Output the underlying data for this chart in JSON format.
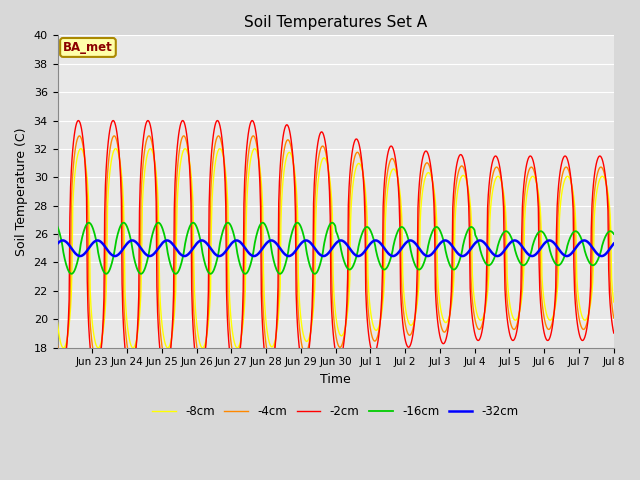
{
  "title": "Soil Temperatures Set A",
  "xlabel": "Time",
  "ylabel": "Soil Temperature (C)",
  "ylim": [
    18,
    40
  ],
  "annotation_text": "BA_met",
  "colors": {
    "-2cm": "#ff0000",
    "-4cm": "#ff8800",
    "-8cm": "#ffff00",
    "-16cm": "#00cc00",
    "-32cm": "#0000ff"
  },
  "background_color": "#e8e8e8",
  "grid_color": "#ffffff",
  "n_days": 16,
  "samples_per_day": 48,
  "tick_labels": [
    "Jun 23",
    "Jun 24",
    "Jun 25",
    "Jun 26",
    "Jun 27",
    "Jun 28",
    "Jun 29",
    "Jun 30",
    "Jul 1",
    "Jul 2",
    "Jul 3",
    "Jul 4",
    "Jul 5",
    "Jul 6",
    "Jul 7",
    "Jul 8"
  ],
  "figsize": [
    6.4,
    4.8
  ],
  "dpi": 100
}
